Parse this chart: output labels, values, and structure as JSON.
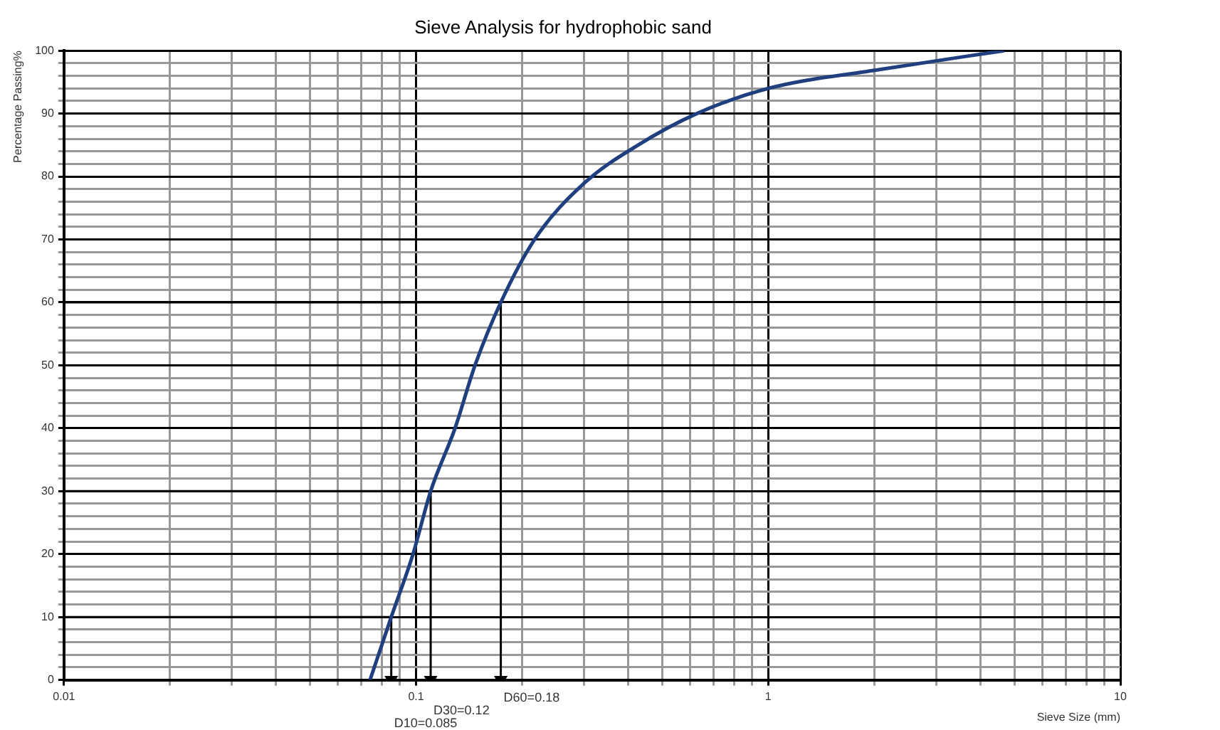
{
  "chart_data": {
    "type": "line",
    "title": "Sieve Analysis for hydrophobic sand",
    "xlabel": "Sieve Size (mm)",
    "ylabel": "Percentage Passing%",
    "log": "x",
    "grid": true,
    "legend": false,
    "marker": "none",
    "line_style": "solid",
    "xlim": [
      0.01,
      10
    ],
    "xticks": [
      0.01,
      {
        "value": 0.02,
        "label": null
      },
      {
        "value": 0.03,
        "label": null
      },
      {
        "value": 0.04,
        "label": null
      },
      {
        "value": 0.05,
        "label": null
      },
      {
        "value": 0.06,
        "label": null
      },
      {
        "value": 0.07,
        "label": null
      },
      {
        "value": 0.08,
        "label": null
      },
      {
        "value": 0.09,
        "label": null
      },
      0.1,
      {
        "value": 0.2,
        "label": null
      },
      {
        "value": 0.3,
        "label": null
      },
      {
        "value": 0.4,
        "label": null
      },
      {
        "value": 0.5,
        "label": null
      },
      {
        "value": 0.6,
        "label": null
      },
      {
        "value": 0.7,
        "label": null
      },
      {
        "value": 0.8,
        "label": null
      },
      {
        "value": 0.9,
        "label": null
      },
      1,
      {
        "value": 2,
        "label": null
      },
      {
        "value": 3,
        "label": null
      },
      {
        "value": 4,
        "label": null
      },
      {
        "value": 5,
        "label": null
      },
      {
        "value": 6,
        "label": null
      },
      {
        "value": 7,
        "label": null
      },
      {
        "value": 8,
        "label": null
      },
      {
        "value": 9,
        "label": null
      },
      10
    ],
    "ylim": [
      0,
      100
    ],
    "yticks": [
      0,
      {
        "value": 2,
        "label": null
      },
      {
        "value": 4,
        "label": null
      },
      {
        "value": 6,
        "label": null
      },
      {
        "value": 8,
        "label": null
      },
      10,
      {
        "value": 12,
        "label": null
      },
      {
        "value": 14,
        "label": null
      },
      {
        "value": 16,
        "label": null
      },
      {
        "value": 18,
        "label": null
      },
      20,
      {
        "value": 22,
        "label": null
      },
      {
        "value": 24,
        "label": null
      },
      {
        "value": 26,
        "label": null
      },
      {
        "value": 28,
        "label": null
      },
      30,
      {
        "value": 32,
        "label": null
      },
      {
        "value": 34,
        "label": null
      },
      {
        "value": 36,
        "label": null
      },
      {
        "value": 38,
        "label": null
      },
      40,
      {
        "value": 42,
        "label": null
      },
      {
        "value": 44,
        "label": null
      },
      {
        "value": 46,
        "label": null
      },
      {
        "value": 48,
        "label": null
      },
      50,
      {
        "value": 52,
        "label": null
      },
      {
        "value": 54,
        "label": null
      },
      {
        "value": 56,
        "label": null
      },
      {
        "value": 58,
        "label": null
      },
      60,
      {
        "value": 62,
        "label": null
      },
      {
        "value": 64,
        "label": null
      },
      {
        "value": 66,
        "label": null
      },
      {
        "value": 68,
        "label": null
      },
      70,
      {
        "value": 72,
        "label": null
      },
      {
        "value": 74,
        "label": null
      },
      {
        "value": 76,
        "label": null
      },
      {
        "value": 78,
        "label": null
      },
      80,
      {
        "value": 82,
        "label": null
      },
      {
        "value": 84,
        "label": null
      },
      {
        "value": 86,
        "label": null
      },
      {
        "value": 88,
        "label": null
      },
      90,
      {
        "value": 92,
        "label": null
      },
      {
        "value": 94,
        "label": null
      },
      {
        "value": 96,
        "label": null
      },
      {
        "value": 98,
        "label": null
      },
      100
    ],
    "series": [
      {
        "color": "#1f3f7f",
        "x": [
          0.074,
          0.085,
          0.098,
          0.11,
          0.129,
          0.147,
          0.174,
          0.217,
          0.301,
          0.427,
          0.627,
          1.0,
          2.07,
          4.68
        ],
        "values": [
          0,
          10,
          20,
          30,
          40,
          50,
          60,
          70,
          79,
          85,
          90,
          94,
          97,
          100
        ]
      },
      {
        "color": "#000000",
        "x": [
          0.01,
          0.085,
          0.085
        ],
        "values": [
          10,
          10,
          0
        ]
      },
      {
        "color": "#000000",
        "x": [
          0.01,
          0.11,
          0.11
        ],
        "values": [
          30,
          30,
          0
        ]
      },
      {
        "color": "#000000",
        "x": [
          0.01,
          0.174,
          0.174
        ],
        "values": [
          60,
          60,
          0
        ]
      }
    ],
    "annotations": [
      {
        "text": "D10=0.085",
        "x": 0.085,
        "y": 0
      },
      {
        "text": "D30=0.12",
        "x": 0.11,
        "y": 0
      },
      {
        "text": "D60=0.18",
        "x": 0.174,
        "y": 0
      }
    ]
  }
}
